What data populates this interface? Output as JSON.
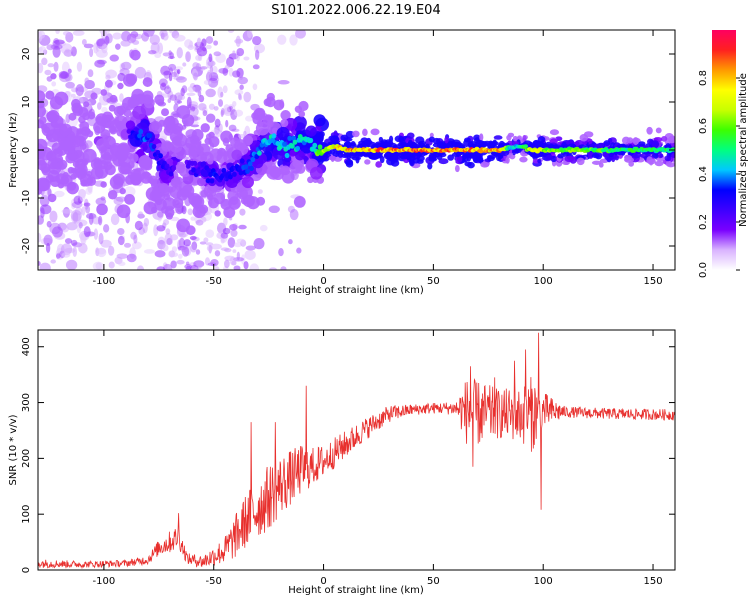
{
  "figure": {
    "title": "S101.2022.006.22.19.E04"
  },
  "chart_data": [
    {
      "type": "heatmap",
      "xlabel": "Height of straight line (km)",
      "ylabel": "Frequency (Hz)",
      "xlim": [
        -130,
        160
      ],
      "ylim": [
        -25,
        25
      ],
      "x_ticks": [
        -100,
        -50,
        0,
        50,
        100,
        150
      ],
      "y_ticks": [
        -20,
        -10,
        0,
        10,
        20
      ],
      "colorbar": {
        "label": "Normalized spectral amplitude",
        "range": [
          0,
          1
        ],
        "ticks": [
          "0.0",
          "0.2",
          "0.4",
          "0.6",
          "0.8"
        ],
        "tick_values": [
          0.0,
          0.2,
          0.4,
          0.6,
          0.8
        ],
        "colors": [
          "#ffffff",
          "#d9b3ff",
          "#7a00ff",
          "#3d00ff",
          "#0000ff",
          "#00c8ff",
          "#00ff80",
          "#3cff00",
          "#c8ff00",
          "#ffff00",
          "#ff9900",
          "#ff2020",
          "#ff0060"
        ]
      },
      "ridge": {
        "x": [
          -130,
          -110,
          -90,
          -85,
          -80,
          -75,
          -70,
          -65,
          -60,
          -55,
          -50,
          -45,
          -40,
          -35,
          -30,
          -25,
          -20,
          -15,
          -10,
          -5,
          0,
          5,
          10,
          20,
          40,
          60,
          80,
          85,
          90,
          95,
          100,
          120,
          140,
          160
        ],
        "y": [
          0.5,
          1,
          3,
          3.5,
          2.5,
          -2,
          -4,
          -1,
          -4,
          -4,
          -5,
          -6,
          -4,
          -3,
          -1,
          2,
          0.5,
          1,
          2,
          0.5,
          0,
          0.8,
          0,
          0,
          0,
          0,
          0,
          0.5,
          0.8,
          0,
          0,
          0,
          0,
          0
        ],
        "strength": [
          0.1,
          0.15,
          0.2,
          0.4,
          0.4,
          0.35,
          0.3,
          0.2,
          0.3,
          0.3,
          0.35,
          0.35,
          0.35,
          0.4,
          0.45,
          0.5,
          0.5,
          0.5,
          0.5,
          0.5,
          0.8,
          0.8,
          0.9,
          0.95,
          0.95,
          0.95,
          0.9,
          0.5,
          0.5,
          0.9,
          0.7,
          0.65,
          0.6,
          0.6
        ]
      }
    },
    {
      "type": "line",
      "xlabel": "Height of straight line (km)",
      "ylabel": "SNR (10 * v/v)",
      "xlim": [
        -130,
        160
      ],
      "ylim": [
        0,
        430
      ],
      "x_ticks": [
        -100,
        -50,
        0,
        50,
        100,
        150
      ],
      "y_ticks": [
        0,
        100,
        200,
        300,
        400
      ],
      "color": "#e8302e",
      "envelope": {
        "x": [
          -130,
          -110,
          -90,
          -80,
          -75,
          -70,
          -66,
          -62,
          -55,
          -50,
          -45,
          -40,
          -35,
          -30,
          -25,
          -20,
          -15,
          -10,
          -5,
          0,
          10,
          20,
          30,
          40,
          50,
          60,
          65,
          70,
          80,
          90,
          95,
          100,
          110,
          130,
          160
        ],
        "mean": [
          12,
          10,
          12,
          18,
          40,
          50,
          60,
          20,
          15,
          25,
          35,
          60,
          90,
          110,
          130,
          150,
          165,
          180,
          185,
          195,
          225,
          255,
          280,
          287,
          290,
          290,
          285,
          280,
          280,
          278,
          280,
          285,
          283,
          280,
          278
        ],
        "spread": [
          8,
          6,
          6,
          8,
          15,
          20,
          22,
          10,
          12,
          18,
          25,
          40,
          50,
          55,
          60,
          55,
          50,
          45,
          35,
          30,
          25,
          20,
          15,
          10,
          10,
          12,
          60,
          60,
          45,
          50,
          70,
          35,
          10,
          10,
          10
        ]
      },
      "spikes": [
        {
          "x": -66,
          "y": 102
        },
        {
          "x": -33,
          "y": 265
        },
        {
          "x": -22,
          "y": 265
        },
        {
          "x": -8,
          "y": 330
        },
        {
          "x": 67,
          "y": 365
        },
        {
          "x": 68,
          "y": 185
        },
        {
          "x": 78,
          "y": 345
        },
        {
          "x": 87,
          "y": 375
        },
        {
          "x": 92,
          "y": 395
        },
        {
          "x": 98,
          "y": 425
        },
        {
          "x": 99,
          "y": 108
        }
      ]
    }
  ]
}
